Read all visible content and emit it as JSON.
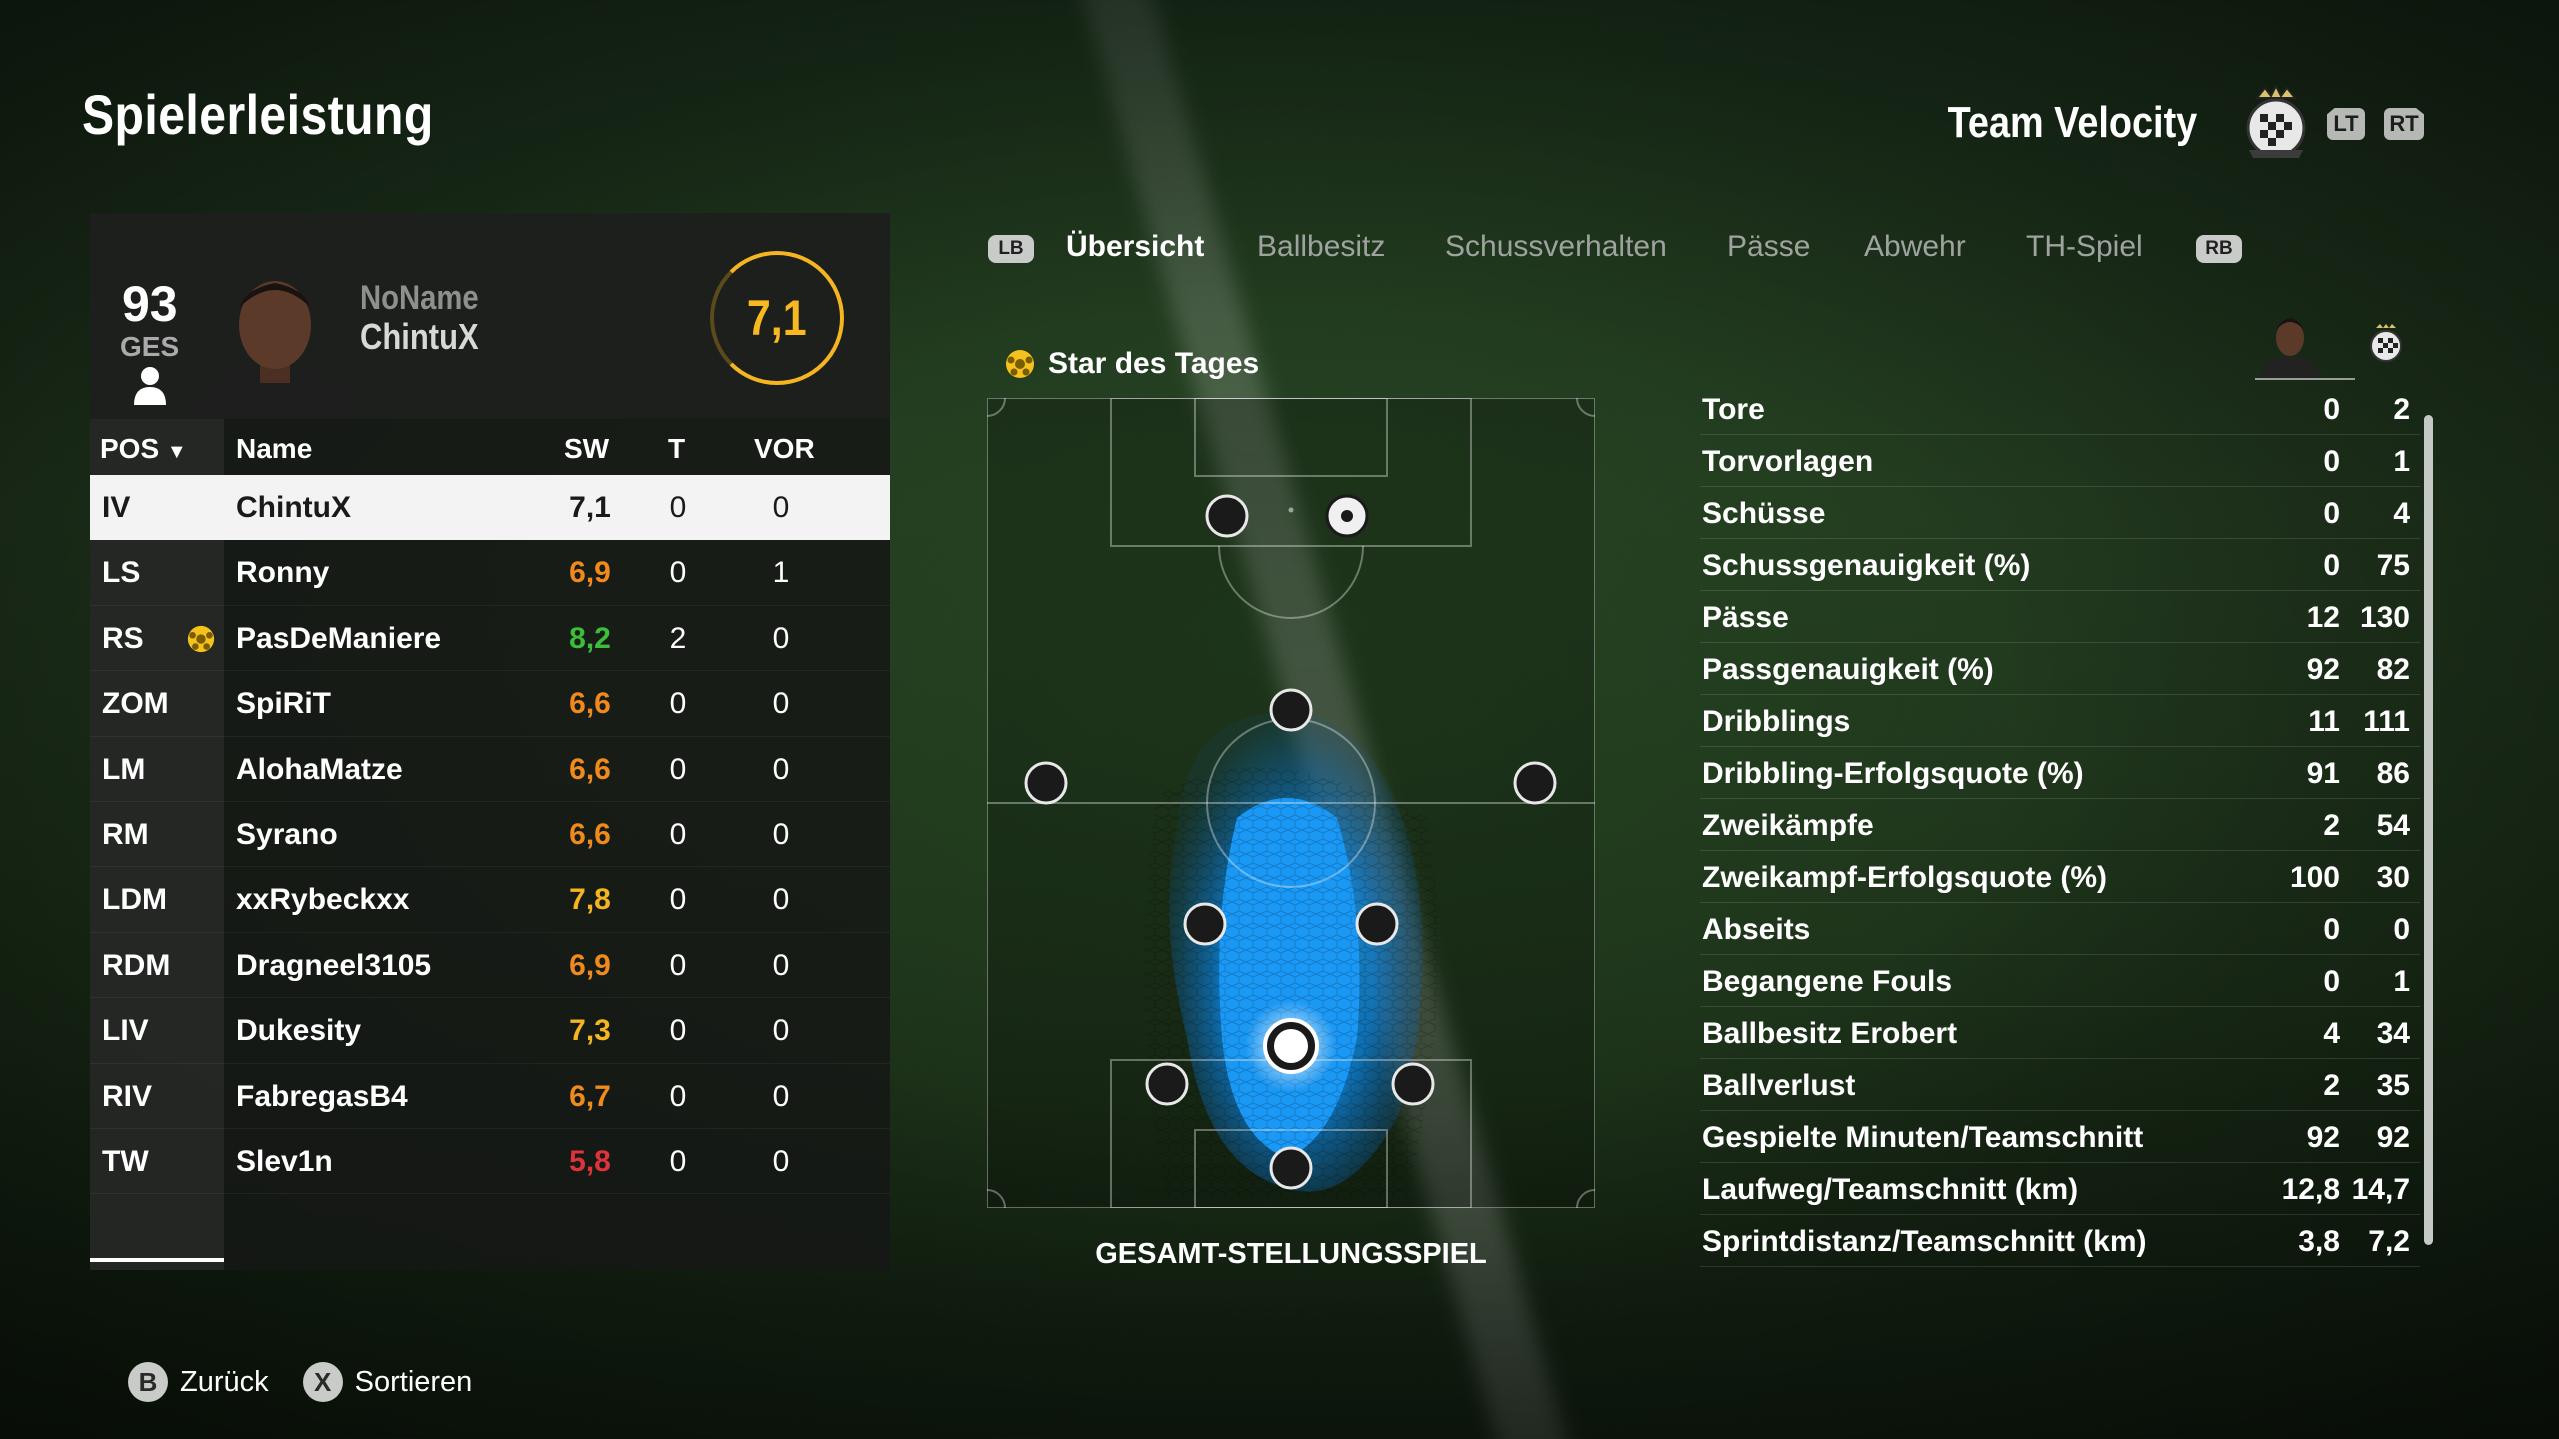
{
  "header": {
    "title": "Spielerleistung",
    "team_name": "Team Velocity",
    "lt_label": "LT",
    "rt_label": "RT"
  },
  "player_card": {
    "overall": "93",
    "overall_label": "GES",
    "name_line1": "NoName",
    "name_line2": "ChintuX",
    "rating": "7,1",
    "rating_color": "#f4b521"
  },
  "table": {
    "headers": {
      "pos": "POS",
      "name": "Name",
      "sw": "SW",
      "t": "T",
      "vor": "VOR"
    },
    "rows": [
      {
        "pos": "IV",
        "name": "ChintuX",
        "sw": "7,1",
        "t": "0",
        "vor": "0",
        "color": "#1a1a1a",
        "selected": true
      },
      {
        "pos": "LS",
        "name": "Ronny",
        "sw": "6,9",
        "t": "0",
        "vor": "1",
        "color": "#f08a1c"
      },
      {
        "pos": "RS",
        "name": "PasDeManiere",
        "sw": "8,2",
        "t": "2",
        "vor": "0",
        "color": "#3bbf3b",
        "star": true
      },
      {
        "pos": "ZOM",
        "name": "SpiRiT",
        "sw": "6,6",
        "t": "0",
        "vor": "0",
        "color": "#f08a1c"
      },
      {
        "pos": "LM",
        "name": "AlohaMatze",
        "sw": "6,6",
        "t": "0",
        "vor": "0",
        "color": "#f08a1c"
      },
      {
        "pos": "RM",
        "name": "Syrano",
        "sw": "6,6",
        "t": "0",
        "vor": "0",
        "color": "#f08a1c"
      },
      {
        "pos": "LDM",
        "name": "xxRybeckxx",
        "sw": "7,8",
        "t": "0",
        "vor": "0",
        "color": "#f4b521"
      },
      {
        "pos": "RDM",
        "name": "Dragneel3105",
        "sw": "6,9",
        "t": "0",
        "vor": "0",
        "color": "#f08a1c"
      },
      {
        "pos": "LIV",
        "name": "Dukesity",
        "sw": "7,3",
        "t": "0",
        "vor": "0",
        "color": "#f4b521"
      },
      {
        "pos": "RIV",
        "name": "FabregasB4",
        "sw": "6,7",
        "t": "0",
        "vor": "0",
        "color": "#f08a1c"
      },
      {
        "pos": "TW",
        "name": "Slev1n",
        "sw": "5,8",
        "t": "0",
        "vor": "0",
        "color": "#e0323a"
      }
    ]
  },
  "tabs": {
    "lb": "LB",
    "rb": "RB",
    "items": [
      "Übersicht",
      "Ballbesitz",
      "Schussverhalten",
      "Pässe",
      "Abwehr",
      "TH-Spiel"
    ]
  },
  "pitch": {
    "motm_label": "Star des Tages",
    "caption": "GESAMT-STELLUNGSSPIEL",
    "heatmap_color": "#1a8fe8"
  },
  "stats": [
    {
      "label": "Tore",
      "player": "0",
      "team": "2"
    },
    {
      "label": "Torvorlagen",
      "player": "0",
      "team": "1"
    },
    {
      "label": "Schüsse",
      "player": "0",
      "team": "4"
    },
    {
      "label": "Schussgenauigkeit (%)",
      "player": "0",
      "team": "75"
    },
    {
      "label": "Pässe",
      "player": "12",
      "team": "130"
    },
    {
      "label": "Passgenauigkeit (%)",
      "player": "92",
      "team": "82"
    },
    {
      "label": "Dribblings",
      "player": "11",
      "team": "111"
    },
    {
      "label": "Dribbling-Erfolgsquote (%)",
      "player": "91",
      "team": "86"
    },
    {
      "label": "Zweikämpfe",
      "player": "2",
      "team": "54"
    },
    {
      "label": "Zweikampf-Erfolgsquote (%)",
      "player": "100",
      "team": "30"
    },
    {
      "label": "Abseits",
      "player": "0",
      "team": "0"
    },
    {
      "label": "Begangene Fouls",
      "player": "0",
      "team": "1"
    },
    {
      "label": "Ballbesitz Erobert",
      "player": "4",
      "team": "34"
    },
    {
      "label": "Ballverlust",
      "player": "2",
      "team": "35"
    },
    {
      "label": "Gespielte Minuten/Teamschnitt",
      "player": "92",
      "team": "92"
    },
    {
      "label": "Laufweg/Teamschnitt (km)",
      "player": "12,8",
      "team": "14,7"
    },
    {
      "label": "Sprintdistanz/Teamschnitt (km)",
      "player": "3,8",
      "team": "7,2"
    }
  ],
  "footer": {
    "back_key": "B",
    "back_label": "Zurück",
    "sort_key": "X",
    "sort_label": "Sortieren"
  }
}
